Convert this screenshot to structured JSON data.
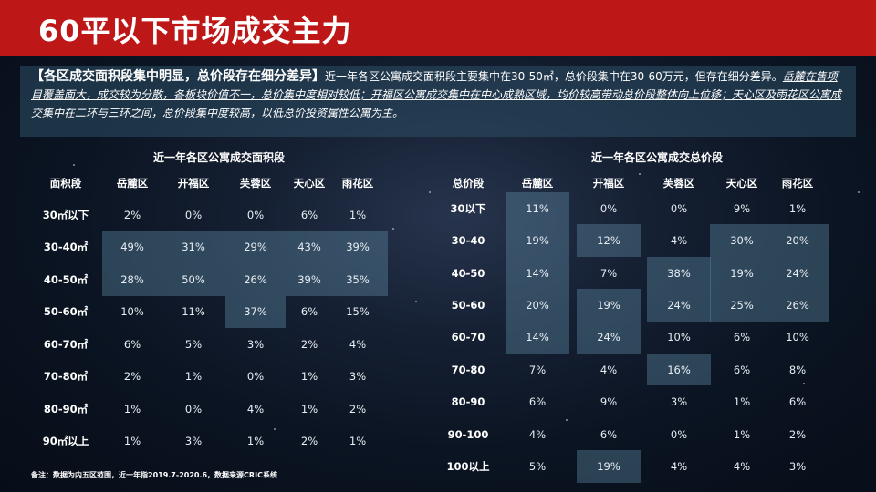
{
  "title": "60平以下市场成交主力",
  "summary": {
    "heading": "【各区成交面积段集中明显，总价段存在细分差异】",
    "text": "近一年各区公寓成交面积段主要集中在30-50㎡，总价段集中在30-60万元，但存在细分差异。",
    "emphasis": "岳麓在售项目覆盖面大，成交较为分散，各板块价值不一，总价集中度相对较低；开福区公寓成交集中在中心成熟区域，均价较高带动总价段整体向上位移；天心区及雨花区公寓成交集中在二环与三环之间，总价段集中度较高，以低总价投资属性公寓为主。"
  },
  "area_table": {
    "title": "近一年各区公寓成交面积段",
    "headers": [
      "面积段",
      "岳麓区",
      "开福区",
      "芙蓉区",
      "天心区",
      "雨花区"
    ],
    "rows": [
      [
        "30㎡以下",
        "2%",
        "0%",
        "0%",
        "6%",
        "1%"
      ],
      [
        "30-40㎡",
        "49%",
        "31%",
        "29%",
        "43%",
        "39%"
      ],
      [
        "40-50㎡",
        "28%",
        "50%",
        "26%",
        "39%",
        "35%"
      ],
      [
        "50-60㎡",
        "10%",
        "11%",
        "37%",
        "6%",
        "15%"
      ],
      [
        "60-70㎡",
        "6%",
        "5%",
        "3%",
        "2%",
        "4%"
      ],
      [
        "70-80㎡",
        "2%",
        "1%",
        "0%",
        "1%",
        "3%"
      ],
      [
        "80-90㎡",
        "1%",
        "0%",
        "4%",
        "1%",
        "2%"
      ],
      [
        "90㎡以上",
        "1%",
        "3%",
        "1%",
        "2%",
        "1%"
      ]
    ]
  },
  "price_table": {
    "title": "近一年各区公寓成交总价段",
    "headers": [
      "总价段",
      "岳麓区",
      "开福区",
      "芙蓉区",
      "天心区",
      "雨花区"
    ],
    "rows": [
      [
        "30以下",
        "11%",
        "0%",
        "0%",
        "9%",
        "1%"
      ],
      [
        "30-40",
        "19%",
        "12%",
        "4%",
        "30%",
        "20%"
      ],
      [
        "40-50",
        "14%",
        "7%",
        "38%",
        "19%",
        "24%"
      ],
      [
        "50-60",
        "20%",
        "19%",
        "24%",
        "25%",
        "26%"
      ],
      [
        "60-70",
        "14%",
        "24%",
        "10%",
        "6%",
        "10%"
      ],
      [
        "70-80",
        "7%",
        "4%",
        "16%",
        "6%",
        "8%"
      ],
      [
        "80-90",
        "6%",
        "9%",
        "3%",
        "1%",
        "6%"
      ],
      [
        "90-100",
        "4%",
        "6%",
        "0%",
        "1%",
        "2%"
      ],
      [
        "100以上",
        "5%",
        "19%",
        "4%",
        "4%",
        "3%"
      ]
    ]
  },
  "footnote": "备注：数据为内五区范围，近一年指2019.7-2020.6，数据来源CRIC系统",
  "colors": {
    "header_bar": "#bd1717",
    "highlight": "#608ca5"
  }
}
